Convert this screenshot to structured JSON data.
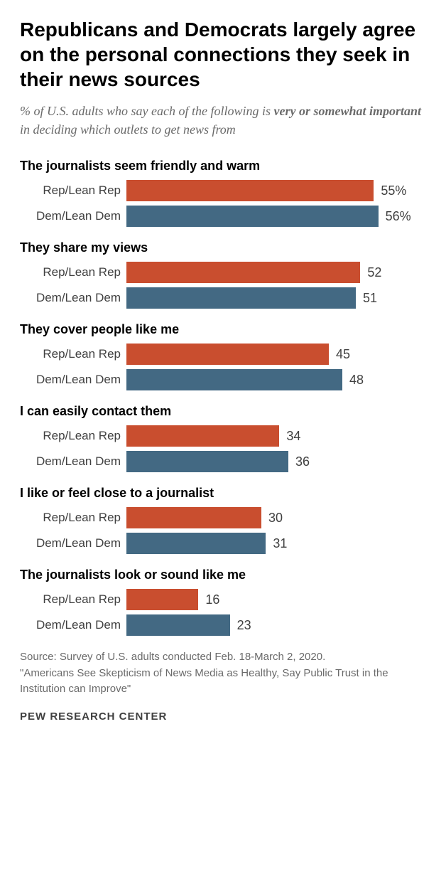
{
  "title": "Republicans and Democrats largely agree on the personal connections they seek in their news sources",
  "subtitle_prefix": "% of U.S. adults who say each of the following is ",
  "subtitle_emphasis": "very or somewhat important",
  "subtitle_suffix": " in deciding which outlets to get news from",
  "colors": {
    "rep": "#c94e2f",
    "dem": "#436983"
  },
  "chart": {
    "max_value": 60,
    "bar_area_width": 380,
    "sections": [
      {
        "label": "The journalists seem friendly and warm",
        "bars": [
          {
            "label": "Rep/Lean Rep",
            "value": 55,
            "display": "55%",
            "color_key": "rep"
          },
          {
            "label": "Dem/Lean Dem",
            "value": 56,
            "display": "56%",
            "color_key": "dem"
          }
        ]
      },
      {
        "label": "They share my views",
        "bars": [
          {
            "label": "Rep/Lean Rep",
            "value": 52,
            "display": "52",
            "color_key": "rep"
          },
          {
            "label": "Dem/Lean Dem",
            "value": 51,
            "display": "51",
            "color_key": "dem"
          }
        ]
      },
      {
        "label": "They cover people like me",
        "bars": [
          {
            "label": "Rep/Lean Rep",
            "value": 45,
            "display": "45",
            "color_key": "rep"
          },
          {
            "label": "Dem/Lean Dem",
            "value": 48,
            "display": "48",
            "color_key": "dem"
          }
        ]
      },
      {
        "label": "I can easily contact them",
        "bars": [
          {
            "label": "Rep/Lean Rep",
            "value": 34,
            "display": "34",
            "color_key": "rep"
          },
          {
            "label": "Dem/Lean Dem",
            "value": 36,
            "display": "36",
            "color_key": "dem"
          }
        ]
      },
      {
        "label": "I like or feel close to a journalist",
        "bars": [
          {
            "label": "Rep/Lean Rep",
            "value": 30,
            "display": "30",
            "color_key": "rep"
          },
          {
            "label": "Dem/Lean Dem",
            "value": 31,
            "display": "31",
            "color_key": "dem"
          }
        ]
      },
      {
        "label": "The journalists look or sound like me",
        "bars": [
          {
            "label": "Rep/Lean Rep",
            "value": 16,
            "display": "16",
            "color_key": "rep"
          },
          {
            "label": "Dem/Lean Dem",
            "value": 23,
            "display": "23",
            "color_key": "dem"
          }
        ]
      }
    ]
  },
  "source_line1": "Source: Survey of U.S. adults conducted Feb. 18-March 2, 2020.",
  "source_line2": "\"Americans See Skepticism of News Media as Healthy, Say Public Trust in the Institution can Improve\"",
  "attribution": "PEW RESEARCH CENTER"
}
